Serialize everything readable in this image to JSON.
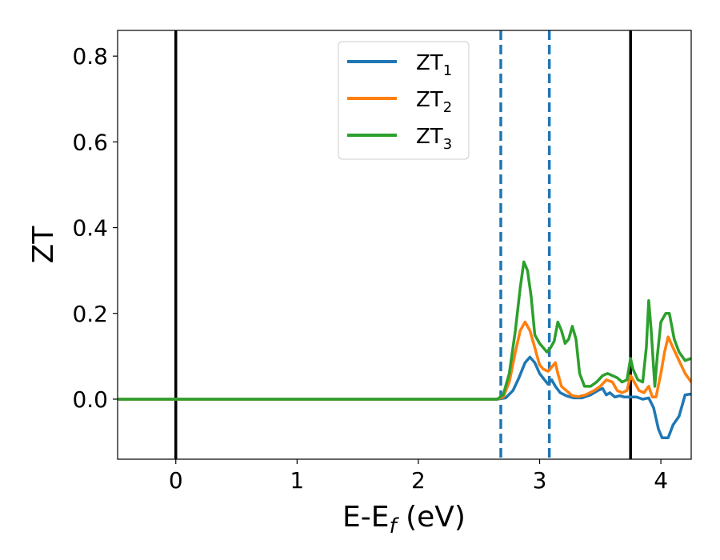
{
  "chart_data": {
    "type": "line",
    "xlabel_main": "E-E",
    "xlabel_sub": "f",
    "xlabel_unit": " (eV)",
    "ylabel": "ZT",
    "xlim": [
      -0.48,
      4.25
    ],
    "ylim": [
      -0.14,
      0.86
    ],
    "x_ticks": [
      0,
      1,
      2,
      3,
      4
    ],
    "x_tick_labels": [
      "0",
      "1",
      "2",
      "3",
      "4"
    ],
    "y_ticks": [
      0.0,
      0.2,
      0.4,
      0.6,
      0.8
    ],
    "y_tick_labels": [
      "0.0",
      "0.2",
      "0.4",
      "0.6",
      "0.8"
    ],
    "grid": false,
    "legend_position": "top-center",
    "vlines": [
      {
        "x": 0.0,
        "color": "#000000",
        "style": "solid"
      },
      {
        "x": 3.75,
        "color": "#000000",
        "style": "solid"
      },
      {
        "x": 2.68,
        "color": "#1f77b4",
        "style": "dashed"
      },
      {
        "x": 3.08,
        "color": "#1f77b4",
        "style": "dashed"
      }
    ],
    "series": [
      {
        "name": "ZT",
        "sub": "1",
        "color": "#1f77b4",
        "points": [
          [
            -0.48,
            0
          ],
          [
            2.65,
            0
          ],
          [
            2.72,
            0.003
          ],
          [
            2.78,
            0.02
          ],
          [
            2.83,
            0.05
          ],
          [
            2.88,
            0.085
          ],
          [
            2.92,
            0.098
          ],
          [
            2.96,
            0.085
          ],
          [
            3.0,
            0.06
          ],
          [
            3.04,
            0.045
          ],
          [
            3.07,
            0.035
          ],
          [
            3.1,
            0.045
          ],
          [
            3.13,
            0.03
          ],
          [
            3.17,
            0.015
          ],
          [
            3.22,
            0.008
          ],
          [
            3.28,
            0.003
          ],
          [
            3.35,
            0.003
          ],
          [
            3.42,
            0.01
          ],
          [
            3.48,
            0.02
          ],
          [
            3.52,
            0.025
          ],
          [
            3.55,
            0.01
          ],
          [
            3.58,
            0.015
          ],
          [
            3.62,
            0.005
          ],
          [
            3.66,
            0.008
          ],
          [
            3.7,
            0.005
          ],
          [
            3.75,
            0.005
          ],
          [
            3.8,
            0.005
          ],
          [
            3.85,
            0.0
          ],
          [
            3.9,
            0.003
          ],
          [
            3.94,
            -0.02
          ],
          [
            3.98,
            -0.07
          ],
          [
            4.01,
            -0.09
          ],
          [
            4.06,
            -0.09
          ],
          [
            4.1,
            -0.06
          ],
          [
            4.15,
            -0.04
          ],
          [
            4.2,
            0.01
          ],
          [
            4.25,
            0.012
          ]
        ]
      },
      {
        "name": "ZT",
        "sub": "2",
        "color": "#ff7f0e",
        "points": [
          [
            -0.48,
            0
          ],
          [
            2.65,
            0
          ],
          [
            2.7,
            0.005
          ],
          [
            2.75,
            0.04
          ],
          [
            2.8,
            0.11
          ],
          [
            2.84,
            0.16
          ],
          [
            2.88,
            0.18
          ],
          [
            2.92,
            0.16
          ],
          [
            2.96,
            0.12
          ],
          [
            3.0,
            0.08
          ],
          [
            3.03,
            0.07
          ],
          [
            3.07,
            0.065
          ],
          [
            3.1,
            0.075
          ],
          [
            3.13,
            0.085
          ],
          [
            3.15,
            0.06
          ],
          [
            3.18,
            0.03
          ],
          [
            3.22,
            0.02
          ],
          [
            3.27,
            0.008
          ],
          [
            3.32,
            0.006
          ],
          [
            3.38,
            0.01
          ],
          [
            3.45,
            0.02
          ],
          [
            3.5,
            0.03
          ],
          [
            3.55,
            0.045
          ],
          [
            3.6,
            0.04
          ],
          [
            3.64,
            0.02
          ],
          [
            3.68,
            0.015
          ],
          [
            3.72,
            0.02
          ],
          [
            3.75,
            0.055
          ],
          [
            3.78,
            0.04
          ],
          [
            3.82,
            0.02
          ],
          [
            3.86,
            0.015
          ],
          [
            3.9,
            0.03
          ],
          [
            3.93,
            0.005
          ],
          [
            3.96,
            0.005
          ],
          [
            4.0,
            0.06
          ],
          [
            4.03,
            0.11
          ],
          [
            4.06,
            0.145
          ],
          [
            4.1,
            0.12
          ],
          [
            4.15,
            0.09
          ],
          [
            4.2,
            0.06
          ],
          [
            4.25,
            0.04
          ]
        ]
      },
      {
        "name": "ZT",
        "sub": "3",
        "color": "#2ca02c",
        "points": [
          [
            -0.48,
            0
          ],
          [
            2.65,
            0
          ],
          [
            2.7,
            0.01
          ],
          [
            2.75,
            0.06
          ],
          [
            2.8,
            0.16
          ],
          [
            2.84,
            0.26
          ],
          [
            2.87,
            0.32
          ],
          [
            2.9,
            0.3
          ],
          [
            2.93,
            0.24
          ],
          [
            2.96,
            0.15
          ],
          [
            3.0,
            0.13
          ],
          [
            3.03,
            0.12
          ],
          [
            3.06,
            0.11
          ],
          [
            3.09,
            0.12
          ],
          [
            3.12,
            0.135
          ],
          [
            3.15,
            0.18
          ],
          [
            3.18,
            0.16
          ],
          [
            3.21,
            0.13
          ],
          [
            3.24,
            0.14
          ],
          [
            3.27,
            0.17
          ],
          [
            3.3,
            0.14
          ],
          [
            3.33,
            0.06
          ],
          [
            3.37,
            0.03
          ],
          [
            3.42,
            0.03
          ],
          [
            3.47,
            0.04
          ],
          [
            3.52,
            0.055
          ],
          [
            3.56,
            0.06
          ],
          [
            3.6,
            0.055
          ],
          [
            3.64,
            0.05
          ],
          [
            3.68,
            0.04
          ],
          [
            3.72,
            0.045
          ],
          [
            3.75,
            0.095
          ],
          [
            3.77,
            0.07
          ],
          [
            3.81,
            0.045
          ],
          [
            3.85,
            0.04
          ],
          [
            3.88,
            0.12
          ],
          [
            3.9,
            0.23
          ],
          [
            3.92,
            0.16
          ],
          [
            3.95,
            0.03
          ],
          [
            3.97,
            0.1
          ],
          [
            4.0,
            0.18
          ],
          [
            4.04,
            0.2
          ],
          [
            4.07,
            0.2
          ],
          [
            4.11,
            0.14
          ],
          [
            4.15,
            0.11
          ],
          [
            4.2,
            0.09
          ],
          [
            4.25,
            0.095
          ]
        ]
      }
    ]
  }
}
